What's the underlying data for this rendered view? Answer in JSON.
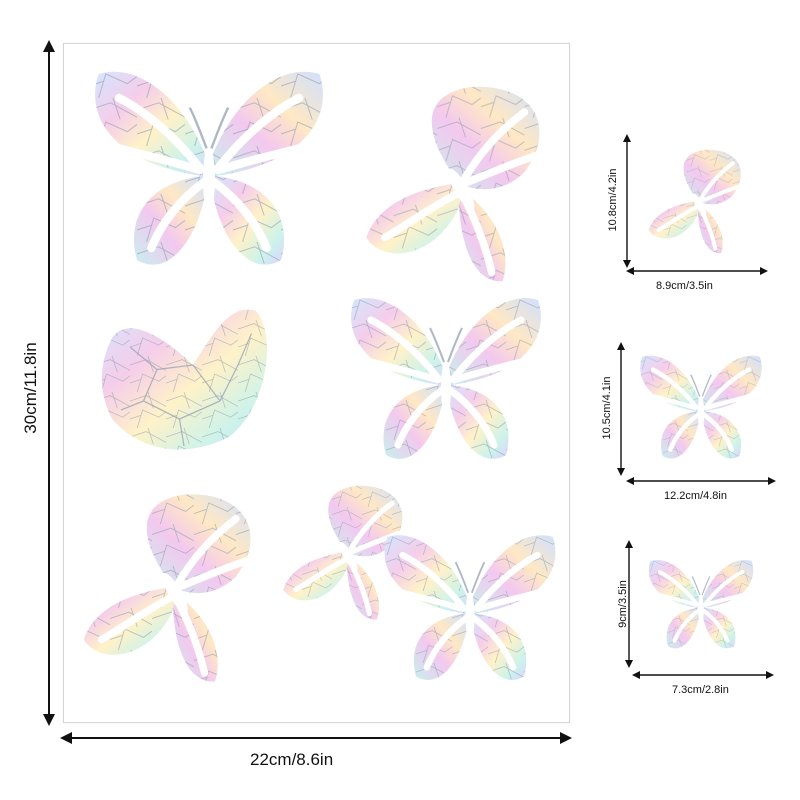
{
  "sheet": {
    "width_label": "22cm/8.6in",
    "height_label": "30cm/11.8in"
  },
  "samples": [
    {
      "width_label": "8.9cm/3.5in",
      "height_label": "10.8cm/4.2in"
    },
    {
      "width_label": "12.2cm/4.8in",
      "height_label": "10.5cm/4.1in"
    },
    {
      "width_label": "7.3cm/2.8in",
      "height_label": "9cm/3.5in"
    }
  ],
  "colors": {
    "holo_a": "#cfe3ff",
    "holo_b": "#f6c6ea",
    "holo_c": "#fff3c2",
    "holo_d": "#c9f5ea",
    "line": "#7f8c9c",
    "arrow": "#111111"
  }
}
